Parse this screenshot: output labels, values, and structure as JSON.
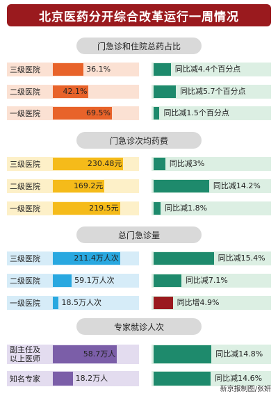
{
  "title": "北京医药分开综合改革运行一周情况",
  "footer": "新京报制图/张妍",
  "chart_data": [
    {
      "type": "bar",
      "title": "门急诊和住院总药占比",
      "categories": [
        "三级医院",
        "二级医院",
        "一级医院"
      ],
      "values": [
        36.1,
        42.1,
        69.5
      ],
      "value_labels": [
        "36.1%",
        "42.1%",
        "69.5%"
      ],
      "changes": [
        -4.4,
        -5.7,
        -1.5
      ],
      "change_labels": [
        "同比减4.4个百分点",
        "同比减5.7个百分点",
        "同比减1.5个百分点"
      ],
      "color": "#e8632a",
      "bg_color": "#fbe1d3"
    },
    {
      "type": "bar",
      "title": "门急诊次均药费",
      "categories": [
        "三级医院",
        "二级医院",
        "一级医院"
      ],
      "values": [
        230.48,
        169.2,
        219.5
      ],
      "value_labels": [
        "230.48元",
        "169.2元",
        "219.5元"
      ],
      "changes": [
        -3,
        -14.2,
        -1.8
      ],
      "change_labels": [
        "同比减3%",
        "同比减14.2%",
        "同比减1.8%"
      ],
      "color": "#f5bb1a",
      "bg_color": "#fdf0c8"
    },
    {
      "type": "bar",
      "title": "总门急诊量",
      "categories": [
        "三级医院",
        "二级医院",
        "一级医院"
      ],
      "values": [
        211.4,
        59.1,
        18.5
      ],
      "value_labels": [
        "211.4万人次",
        "59.1万人次",
        "18.5万人次"
      ],
      "changes": [
        -15.4,
        -7.1,
        4.9
      ],
      "change_labels": [
        "同比减15.4%",
        "同比减7.1%",
        "同比增4.9%"
      ],
      "color": "#29a8e0",
      "bg_color": "#d6ecf8"
    },
    {
      "type": "bar",
      "title": "专家就诊人次",
      "categories": [
        "副主任及\n以上医师",
        "知名专家"
      ],
      "values": [
        58.7,
        18.2
      ],
      "value_labels": [
        "58.7万人",
        "18.2万人"
      ],
      "changes": [
        -14.8,
        -14.6
      ],
      "change_labels": [
        "同比减14.8%",
        "同比减14.6%"
      ],
      "color": "#7b5ea8",
      "bg_color": "#e3dcef"
    }
  ],
  "colors": {
    "decrease": "#1e8a6c",
    "increase": "#9a1a1e",
    "change_bg": "#dcefe3"
  }
}
